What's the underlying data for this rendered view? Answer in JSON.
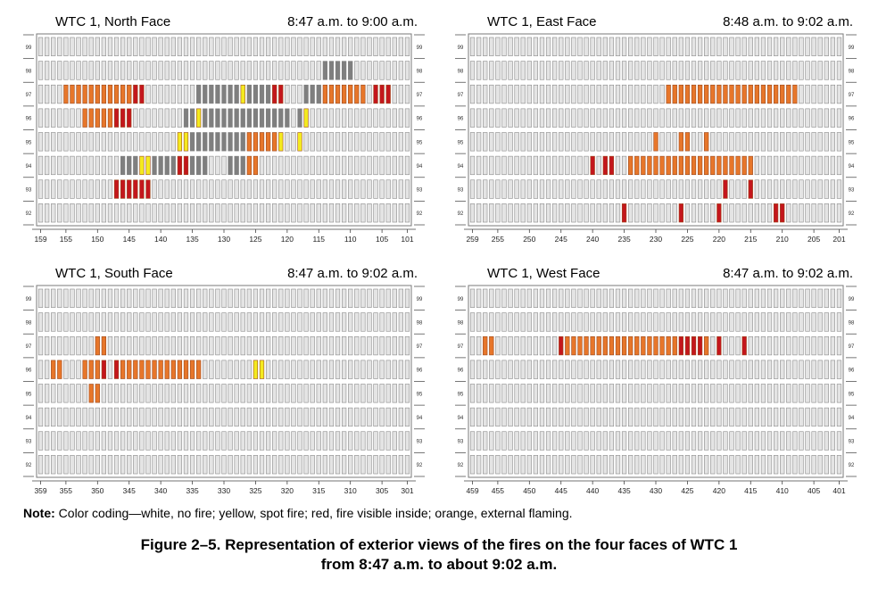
{
  "colors": {
    "no_fire": "#ffffff",
    "window_fill": "#e4e4e4",
    "window_stroke": "#8a8a8a",
    "spot_fire": "#f4ea1e",
    "fire_inside": "#c4161c",
    "external_flaming": "#e7762a",
    "damage": "#7f7f7f"
  },
  "note": {
    "label": "Note:",
    "text": "Color coding—white, no fire; yellow, spot fire; red, fire visible inside; orange, external flaming."
  },
  "caption": {
    "line1": "Figure 2–5.  Representation of exterior views of the fires on the four faces of WTC 1",
    "line2": "from 8:47 a.m. to about 9:02 a.m."
  },
  "chart_data": [
    {
      "type": "heatmap",
      "title": "WTC 1, North Face",
      "time_range": "8:47 a.m. to 9:00 a.m.",
      "floors": [
        92,
        93,
        94,
        95,
        96,
        97,
        98,
        99
      ],
      "column_range": [
        159,
        101
      ],
      "x_ticks": [
        "159",
        "155",
        "150",
        "145",
        "140",
        "135",
        "130",
        "125",
        "120",
        "115",
        "110",
        "105",
        "101"
      ],
      "cells": [
        {
          "floor": 97,
          "start": 155,
          "end": 145,
          "state": "external_flaming"
        },
        {
          "floor": 97,
          "start": 144,
          "end": 143,
          "state": "fire_inside"
        },
        {
          "floor": 97,
          "start": 122,
          "end": 121,
          "state": "fire_inside"
        },
        {
          "floor": 97,
          "start": 114,
          "end": 108,
          "state": "external_flaming"
        },
        {
          "floor": 97,
          "start": 106,
          "end": 104,
          "state": "fire_inside"
        },
        {
          "floor": 97,
          "start": 127,
          "end": 127,
          "state": "spot_fire"
        },
        {
          "floor": 96,
          "start": 152,
          "end": 148,
          "state": "external_flaming"
        },
        {
          "floor": 96,
          "start": 147,
          "end": 145,
          "state": "fire_inside"
        },
        {
          "floor": 96,
          "start": 134,
          "end": 134,
          "state": "spot_fire"
        },
        {
          "floor": 96,
          "start": 117,
          "end": 117,
          "state": "spot_fire"
        },
        {
          "floor": 95,
          "start": 137,
          "end": 136,
          "state": "spot_fire"
        },
        {
          "floor": 95,
          "start": 126,
          "end": 122,
          "state": "external_flaming"
        },
        {
          "floor": 95,
          "start": 121,
          "end": 121,
          "state": "spot_fire"
        },
        {
          "floor": 95,
          "start": 118,
          "end": 118,
          "state": "spot_fire"
        },
        {
          "floor": 94,
          "start": 143,
          "end": 142,
          "state": "spot_fire"
        },
        {
          "floor": 94,
          "start": 137,
          "end": 136,
          "state": "fire_inside"
        },
        {
          "floor": 94,
          "start": 126,
          "end": 125,
          "state": "external_flaming"
        },
        {
          "floor": 93,
          "start": 147,
          "end": 142,
          "state": "fire_inside"
        }
      ],
      "damage_cells": [
        {
          "floor": 98,
          "start": 114,
          "end": 110
        },
        {
          "floor": 97,
          "start": 134,
          "end": 128
        },
        {
          "floor": 97,
          "start": 126,
          "end": 123
        },
        {
          "floor": 97,
          "start": 117,
          "end": 115
        },
        {
          "floor": 96,
          "start": 136,
          "end": 120
        },
        {
          "floor": 96,
          "start": 118,
          "end": 118
        },
        {
          "floor": 95,
          "start": 135,
          "end": 127
        },
        {
          "floor": 94,
          "start": 146,
          "end": 144
        },
        {
          "floor": 94,
          "start": 141,
          "end": 138
        },
        {
          "floor": 94,
          "start": 135,
          "end": 133
        },
        {
          "floor": 94,
          "start": 129,
          "end": 127
        }
      ]
    },
    {
      "type": "heatmap",
      "title": "WTC 1, East Face",
      "time_range": "8:48 a.m. to 9:02 a.m.",
      "floors": [
        92,
        93,
        94,
        95,
        96,
        97,
        98,
        99
      ],
      "column_range": [
        259,
        201
      ],
      "x_ticks": [
        "259",
        "255",
        "250",
        "245",
        "240",
        "235",
        "230",
        "225",
        "220",
        "215",
        "210",
        "205",
        "201"
      ],
      "cells": [
        {
          "floor": 97,
          "start": 228,
          "end": 208,
          "state": "external_flaming"
        },
        {
          "floor": 95,
          "start": 230,
          "end": 230,
          "state": "external_flaming"
        },
        {
          "floor": 95,
          "start": 226,
          "end": 225,
          "state": "external_flaming"
        },
        {
          "floor": 95,
          "start": 222,
          "end": 222,
          "state": "external_flaming"
        },
        {
          "floor": 94,
          "start": 240,
          "end": 240,
          "state": "fire_inside"
        },
        {
          "floor": 94,
          "start": 238,
          "end": 237,
          "state": "fire_inside"
        },
        {
          "floor": 94,
          "start": 234,
          "end": 215,
          "state": "external_flaming"
        },
        {
          "floor": 93,
          "start": 219,
          "end": 219,
          "state": "fire_inside"
        },
        {
          "floor": 93,
          "start": 215,
          "end": 215,
          "state": "fire_inside"
        },
        {
          "floor": 92,
          "start": 235,
          "end": 235,
          "state": "fire_inside"
        },
        {
          "floor": 92,
          "start": 226,
          "end": 226,
          "state": "fire_inside"
        },
        {
          "floor": 92,
          "start": 220,
          "end": 220,
          "state": "fire_inside"
        },
        {
          "floor": 92,
          "start": 211,
          "end": 210,
          "state": "fire_inside"
        }
      ],
      "damage_cells": []
    },
    {
      "type": "heatmap",
      "title": "WTC 1, South Face",
      "time_range": "8:47 a.m. to 9:02 a.m.",
      "floors": [
        92,
        93,
        94,
        95,
        96,
        97,
        98,
        99
      ],
      "column_range": [
        359,
        301
      ],
      "x_ticks": [
        "359",
        "355",
        "350",
        "345",
        "340",
        "335",
        "330",
        "325",
        "320",
        "315",
        "310",
        "305",
        "301"
      ],
      "cells": [
        {
          "floor": 97,
          "start": 350,
          "end": 349,
          "state": "external_flaming"
        },
        {
          "floor": 96,
          "start": 357,
          "end": 356,
          "state": "external_flaming"
        },
        {
          "floor": 96,
          "start": 352,
          "end": 350,
          "state": "external_flaming"
        },
        {
          "floor": 96,
          "start": 349,
          "end": 349,
          "state": "fire_inside"
        },
        {
          "floor": 96,
          "start": 347,
          "end": 347,
          "state": "fire_inside"
        },
        {
          "floor": 96,
          "start": 346,
          "end": 334,
          "state": "external_flaming"
        },
        {
          "floor": 96,
          "start": 325,
          "end": 324,
          "state": "spot_fire"
        },
        {
          "floor": 95,
          "start": 351,
          "end": 350,
          "state": "external_flaming"
        }
      ],
      "damage_cells": []
    },
    {
      "type": "heatmap",
      "title": "WTC 1, West Face",
      "time_range": "8:47 a.m. to 9:02 a.m.",
      "floors": [
        92,
        93,
        94,
        95,
        96,
        97,
        98,
        99
      ],
      "column_range": [
        459,
        401
      ],
      "x_ticks": [
        "459",
        "455",
        "450",
        "445",
        "440",
        "435",
        "430",
        "425",
        "420",
        "415",
        "410",
        "405",
        "401"
      ],
      "cells": [
        {
          "floor": 97,
          "start": 457,
          "end": 456,
          "state": "external_flaming"
        },
        {
          "floor": 97,
          "start": 445,
          "end": 445,
          "state": "fire_inside"
        },
        {
          "floor": 97,
          "start": 444,
          "end": 427,
          "state": "external_flaming"
        },
        {
          "floor": 97,
          "start": 426,
          "end": 423,
          "state": "fire_inside"
        },
        {
          "floor": 97,
          "start": 422,
          "end": 422,
          "state": "external_flaming"
        },
        {
          "floor": 97,
          "start": 420,
          "end": 420,
          "state": "fire_inside"
        },
        {
          "floor": 97,
          "start": 416,
          "end": 416,
          "state": "fire_inside"
        }
      ],
      "damage_cells": []
    }
  ]
}
